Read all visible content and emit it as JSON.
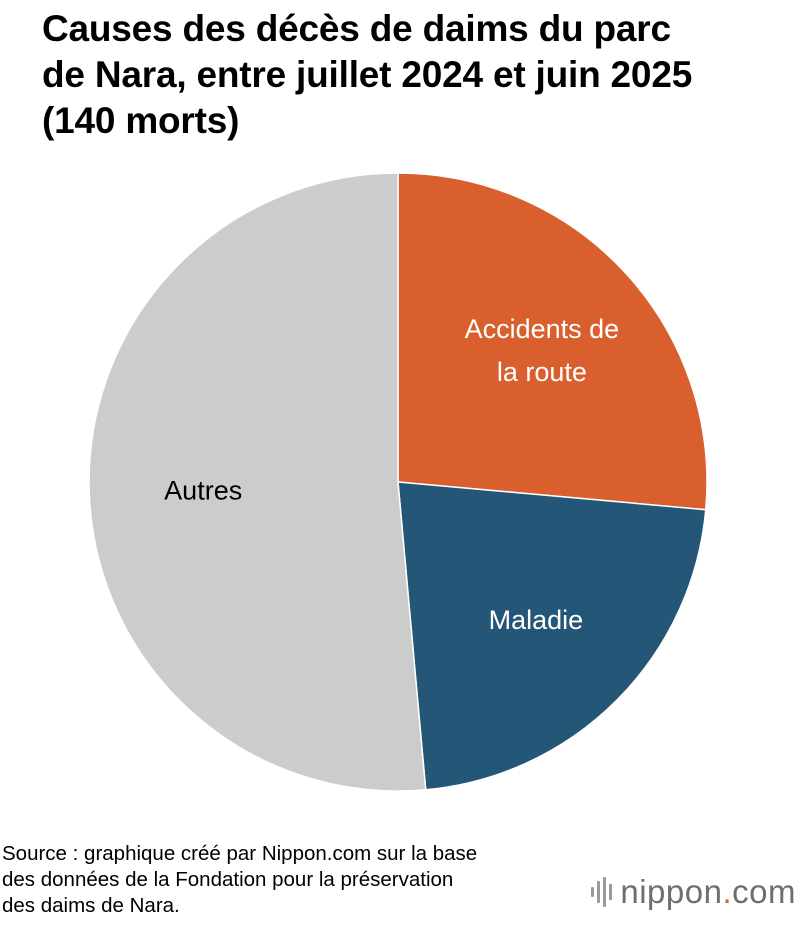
{
  "title_lines": [
    "Causes des décès de daims du parc",
    "de Nara, entre juillet 2024 et juin 2025",
    "(140 morts)"
  ],
  "chart_data": {
    "type": "pie",
    "title": "Causes des décès de daims du parc de Nara, entre juillet 2024 et juin 2025 (140 morts)",
    "total": 140,
    "start_angle_deg": 0,
    "direction": "clockwise",
    "slices": [
      {
        "label_lines": [
          "Accidents de",
          "la route"
        ],
        "value": 37,
        "color": "#d9602e",
        "text_color": "#ffffff"
      },
      {
        "label_lines": [
          "Maladie"
        ],
        "value": 31,
        "color": "#245677",
        "text_color": "#ffffff"
      },
      {
        "label_lines": [
          "Autres"
        ],
        "value": 72,
        "color": "#cccccc",
        "text_color": "#000000"
      }
    ]
  },
  "source_lines": [
    "Source : graphique créé par Nippon.com sur la base",
    "des données de la Fondation pour la préservation",
    "des daims de Nara."
  ],
  "logo": {
    "name": "nippon",
    "dot": ".",
    "suffix": "com",
    "icon": "nippon-bars-icon"
  }
}
